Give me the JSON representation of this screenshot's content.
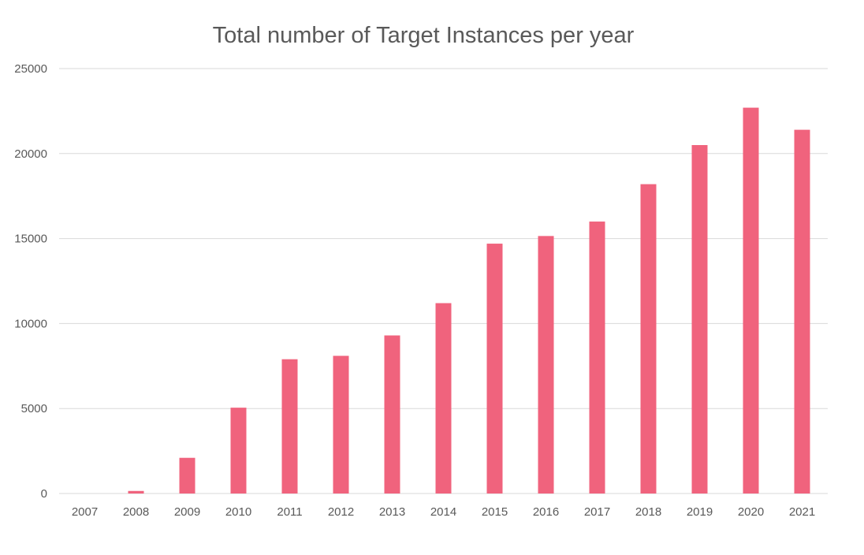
{
  "chart_data": {
    "type": "bar",
    "title": "Total number of Target Instances per year",
    "xlabel": "",
    "ylabel": "",
    "categories": [
      "2007",
      "2008",
      "2009",
      "2010",
      "2011",
      "2012",
      "2013",
      "2014",
      "2015",
      "2016",
      "2017",
      "2018",
      "2019",
      "2020",
      "2021"
    ],
    "series": [
      {
        "name": "Target Instances",
        "values": [
          0,
          150,
          2100,
          5050,
          7900,
          8100,
          9300,
          11200,
          14700,
          15150,
          16000,
          18200,
          20500,
          22700,
          21400
        ]
      }
    ],
    "ylim": [
      0,
      25000
    ],
    "yticks": [
      "0",
      "5000",
      "10000",
      "15000",
      "20000",
      "25000"
    ],
    "grid": true,
    "legend": "none",
    "colors": {
      "bar": "#f0637d",
      "grid": "#d9d9d9",
      "text": "#595959"
    }
  }
}
